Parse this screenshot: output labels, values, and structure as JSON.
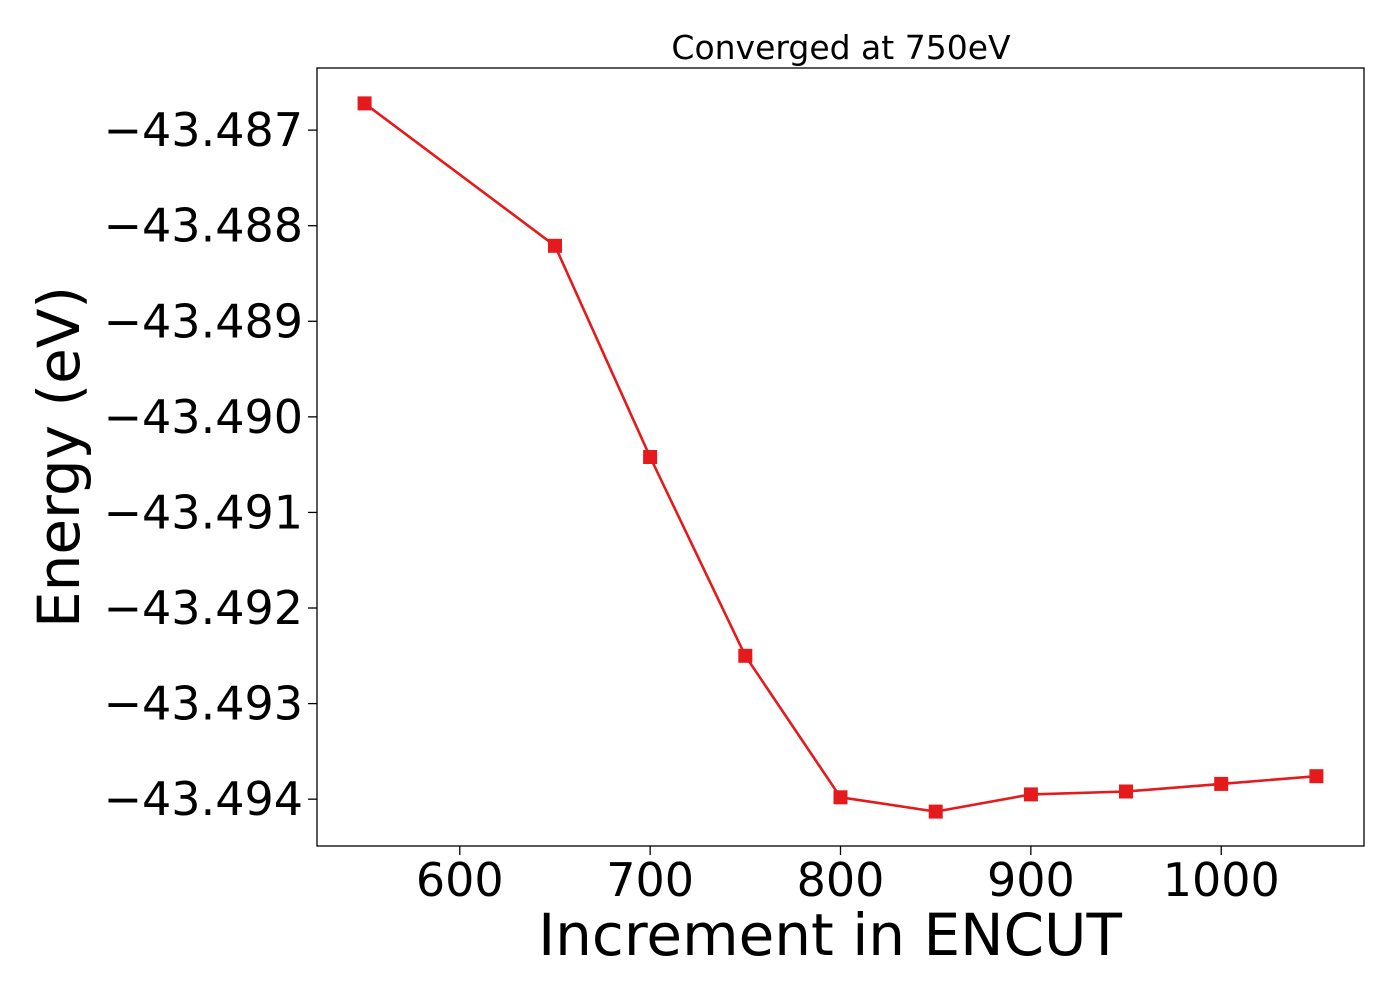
{
  "chart_data": {
    "type": "line",
    "title": "Converged at 750eV",
    "xlabel": "Increment in ENCUT",
    "ylabel": "Energy (eV)",
    "x": [
      550,
      600,
      650,
      700,
      750,
      800,
      850,
      900,
      950,
      1000,
      1050
    ],
    "series": [
      {
        "values": [
          -43.48672,
          null,
          -43.48821,
          -43.49042,
          -43.4925,
          -43.49398,
          -43.49413,
          -43.49395,
          -43.49392,
          -43.49384,
          -43.49376
        ],
        "color": "#e41a1c",
        "marker": "square"
      }
    ],
    "xlim": [
      525,
      1075
    ],
    "ylim": [
      -43.49449,
      -43.48635
    ],
    "xticks": [
      600,
      700,
      800,
      900,
      1000
    ],
    "xtick_labels": [
      "600",
      "700",
      "800",
      "900",
      "1000"
    ],
    "yticks": [
      -43.487,
      -43.488,
      -43.489,
      -43.49,
      -43.491,
      -43.492,
      -43.493,
      -43.494
    ],
    "ytick_labels": [
      "−43.487",
      "−43.488",
      "−43.489",
      "−43.490",
      "−43.491",
      "−43.492",
      "−43.493",
      "−43.494"
    ],
    "grid": false,
    "legend": "none"
  }
}
